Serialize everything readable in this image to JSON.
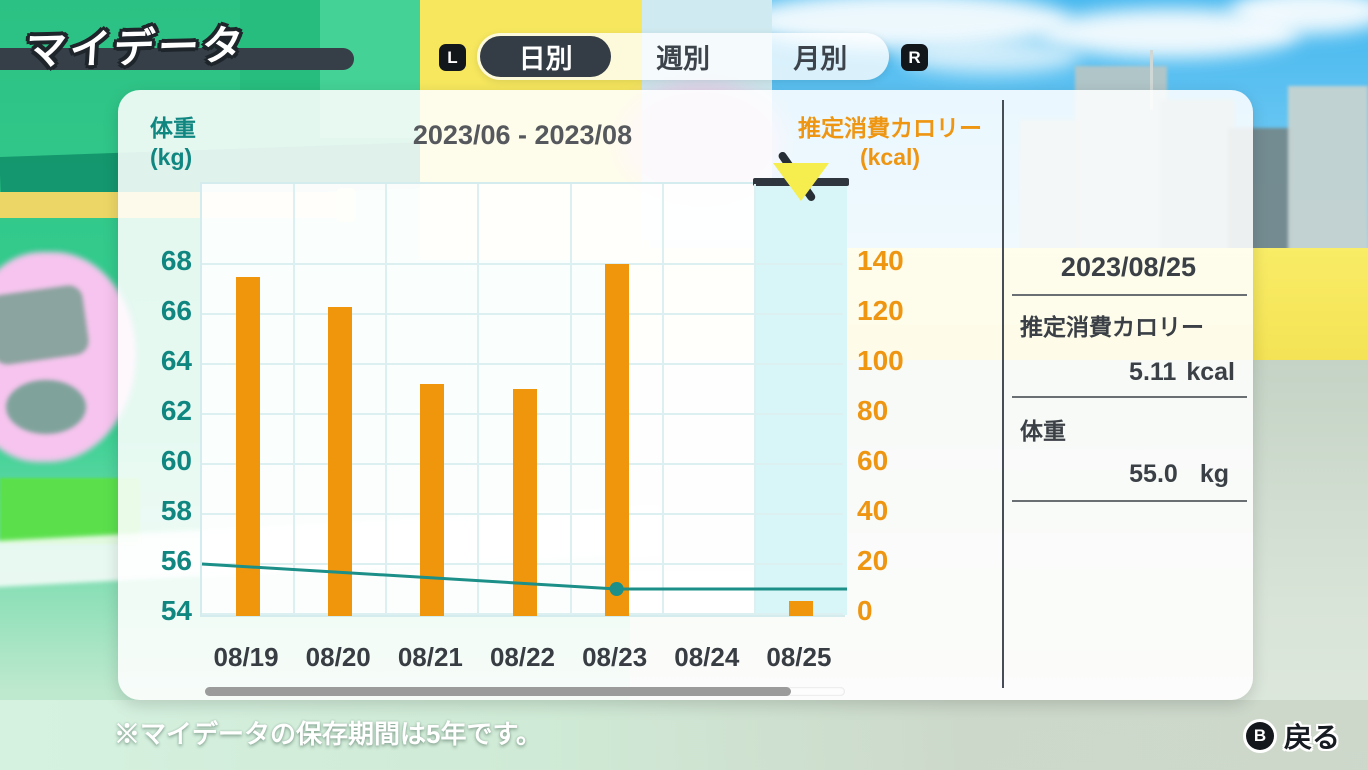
{
  "header": {
    "title": "マイデータ",
    "left_shoulder": "L",
    "right_shoulder": "R",
    "tabs": [
      {
        "label": "日別",
        "selected": true
      },
      {
        "label": "週別",
        "selected": false
      },
      {
        "label": "月別",
        "selected": false
      }
    ]
  },
  "chart_data": {
    "type": "bar",
    "title": "2023/06 - 2023/08",
    "categories": [
      "08/19",
      "08/20",
      "08/21",
      "08/22",
      "08/23",
      "08/24",
      "08/25"
    ],
    "selected_category": "08/25",
    "series": [
      {
        "name": "推定消費カロリー",
        "type": "bar",
        "axis": "right",
        "color": "#f0960c",
        "values": [
          135,
          123,
          92,
          90,
          140,
          0,
          5.11
        ]
      },
      {
        "name": "体重",
        "type": "line",
        "axis": "left",
        "color": "#1b8f88",
        "values": [
          55.9,
          55.7,
          55.4,
          55.2,
          55.0,
          55.0,
          55.0
        ],
        "line_points": [
          [
            0,
            56.0
          ],
          [
            4.5,
            55.0
          ],
          [
            7,
            55.0
          ]
        ],
        "marker_point": [
          4.5,
          55.0
        ]
      }
    ],
    "left_axis": {
      "title_line1": "体重",
      "title_line2": "(kg)",
      "color": "#108680",
      "ticks": [
        68,
        66,
        64,
        62,
        60,
        58,
        56,
        54
      ],
      "range": [
        54,
        68
      ]
    },
    "right_axis": {
      "title_line1": "推定消費カロリー",
      "title_line2": "(kcal)",
      "color": "#ee9511",
      "ticks": [
        140,
        120,
        100,
        80,
        60,
        40,
        20,
        0
      ],
      "range": [
        0,
        140
      ]
    },
    "grid": true,
    "legend": "none"
  },
  "detail_panel": {
    "date": "2023/08/25",
    "calories_label": "推定消費カロリー",
    "calories_value": "5.11",
    "calories_unit": "kcal",
    "weight_label": "体重",
    "weight_value": "55.0",
    "weight_unit": "kg"
  },
  "footer": {
    "notice": "※マイデータの保存期間は5年です。",
    "back_button": "B",
    "back_label": "戻る"
  },
  "colors": {
    "bar_orange": "#f0960c",
    "weight_teal": "#108680",
    "calorie_orange": "#ee9511",
    "highlight_cyan": "#d8f6f8",
    "ui_dark": "#343c45",
    "marker_yellow": "#f5ee4e"
  }
}
